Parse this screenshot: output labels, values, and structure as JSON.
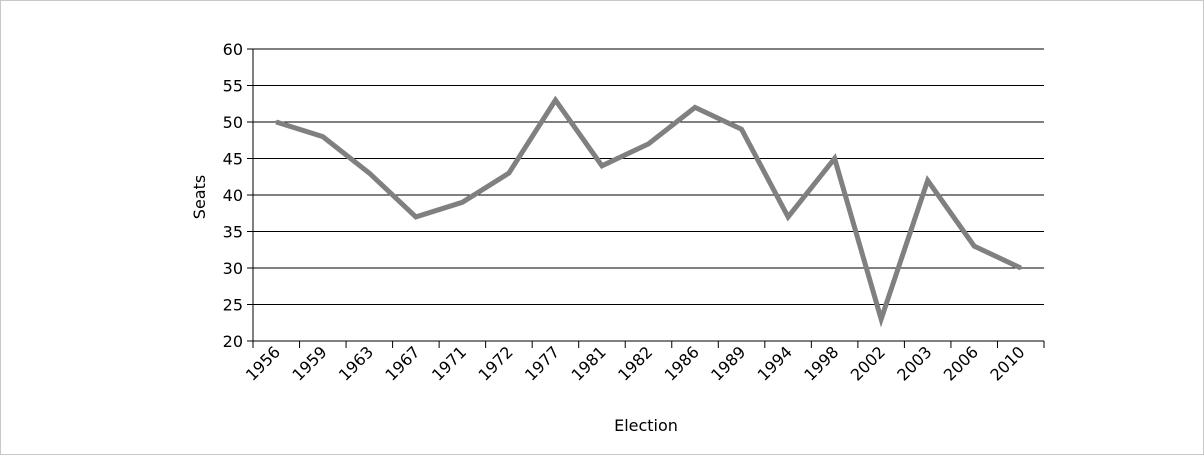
{
  "chart_data": {
    "type": "line",
    "title": "",
    "xlabel": "Election",
    "ylabel": "Seats",
    "ylim": [
      20,
      60
    ],
    "yticks": [
      20,
      25,
      30,
      35,
      40,
      45,
      50,
      55,
      60
    ],
    "grid": true,
    "legend": "none",
    "categories": [
      "1956",
      "1959",
      "1963",
      "1967",
      "1971",
      "1972",
      "1977",
      "1981",
      "1982",
      "1986",
      "1989",
      "1994",
      "1998",
      "2002",
      "2003",
      "2006",
      "2010"
    ],
    "series": [
      {
        "values": [
          50,
          48,
          43,
          37,
          39,
          43,
          53,
          44,
          47,
          52,
          49,
          37,
          45,
          23,
          42,
          33,
          30
        ],
        "color": "#808080"
      }
    ]
  }
}
